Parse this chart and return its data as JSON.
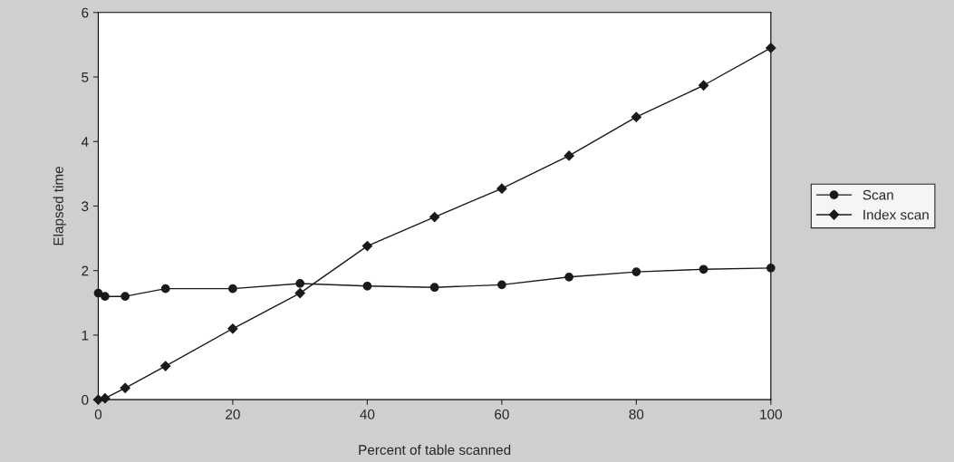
{
  "chart_data": {
    "type": "line",
    "xlabel": "Percent of table scanned",
    "ylabel": "Elapsed time",
    "x": [
      0,
      1,
      4,
      10,
      20,
      30,
      40,
      50,
      60,
      70,
      80,
      90,
      100
    ],
    "series": [
      {
        "name": "Scan",
        "color": "#1a1a1a",
        "marker": "circle",
        "values": [
          1.65,
          1.6,
          1.6,
          1.72,
          1.72,
          1.8,
          1.76,
          1.74,
          1.78,
          1.9,
          1.98,
          2.02,
          2.04
        ]
      },
      {
        "name": "Index scan",
        "color": "#1a1a1a",
        "marker": "diamond",
        "values": [
          0,
          0.02,
          0.18,
          0.52,
          1.1,
          1.65,
          2.38,
          2.83,
          3.27,
          3.78,
          4.38,
          4.87,
          5.45
        ]
      }
    ],
    "xlim": [
      0,
      100
    ],
    "xticks": [
      0,
      20,
      40,
      60,
      80,
      100
    ],
    "ylim": [
      0,
      6
    ],
    "yticks": [
      0,
      1,
      2,
      3,
      4,
      5,
      6
    ],
    "grid": false,
    "legend": "right",
    "line_style": "solid"
  }
}
